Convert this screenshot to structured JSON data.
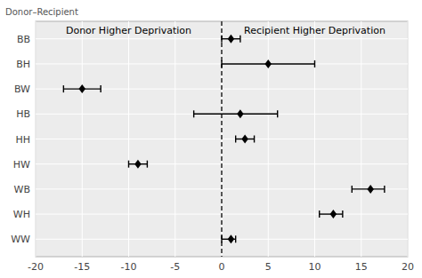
{
  "chart_data": {
    "type": "errorbar",
    "orientation": "horizontal",
    "ylabel": "Donor–Recipient",
    "annotations": [
      "Donor Higher Deprivation",
      "Recipient Higher Deprivation"
    ],
    "categories": [
      "BB",
      "BH",
      "BW",
      "HB",
      "HH",
      "HW",
      "WB",
      "WH",
      "WW"
    ],
    "values": [
      1.0,
      5.0,
      -15.0,
      2.0,
      2.5,
      -9.0,
      16.0,
      12.0,
      1.0
    ],
    "lower": [
      0.0,
      0.0,
      -17.0,
      -3.0,
      1.5,
      -10.0,
      14.0,
      10.5,
      0.0
    ],
    "upper": [
      2.0,
      10.0,
      -13.0,
      6.0,
      3.5,
      -8.0,
      17.5,
      13.0,
      1.5
    ],
    "reference_x": 0.0,
    "xlim": [
      -20,
      20
    ],
    "xticks": [
      -20,
      -15,
      -10,
      -5,
      0,
      5,
      10,
      15,
      20
    ],
    "color": "#000000",
    "marker": "diamond",
    "grid": true
  }
}
